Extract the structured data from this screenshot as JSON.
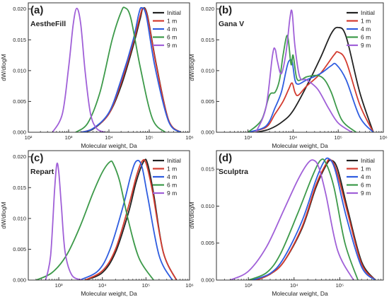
{
  "figure": {
    "background": "#ffffff"
  },
  "chart_data": [
    {
      "type": "line",
      "panel_label": "(a)",
      "sample": "AestheFill",
      "xlabel": "Molecular weight, Da",
      "ylabel": "dW/dlogM",
      "x_scale": "log",
      "xlim": [
        100,
        1000000
      ],
      "ylim": [
        0,
        0.021
      ],
      "xticks": [
        100,
        1000,
        10000,
        100000,
        1000000
      ],
      "xtick_labels": [
        "10²",
        "10³",
        "10⁴",
        "10⁵",
        "10⁶"
      ],
      "yticks": [
        0,
        0.005,
        0.01,
        0.015,
        0.02
      ],
      "ytick_labels": [
        "0.000",
        "0.005",
        "0.010",
        "0.015",
        "0.020"
      ],
      "legend": "top-right",
      "series": [
        {
          "name": "Initial",
          "color": "#222222",
          "x": [
            2000,
            4000,
            10000,
            20000,
            40000,
            60000,
            70000,
            90000,
            150000,
            300000,
            600000
          ],
          "y": [
            0,
            0.0005,
            0.003,
            0.0075,
            0.014,
            0.0185,
            0.0201,
            0.019,
            0.011,
            0.002,
            0
          ]
        },
        {
          "name": "1 m",
          "color": "#d33b2f",
          "x": [
            2000,
            4000,
            10000,
            20000,
            40000,
            60000,
            70000,
            90000,
            150000,
            300000,
            600000
          ],
          "y": [
            0,
            0.0006,
            0.003,
            0.008,
            0.0145,
            0.019,
            0.0201,
            0.0188,
            0.0108,
            0.002,
            0
          ]
        },
        {
          "name": "4 m",
          "color": "#2f5de0",
          "x": [
            2000,
            4000,
            10000,
            20000,
            40000,
            55000,
            65000,
            85000,
            140000,
            300000,
            600000
          ],
          "y": [
            0,
            0.0006,
            0.0032,
            0.0085,
            0.015,
            0.0192,
            0.0202,
            0.0188,
            0.0105,
            0.0018,
            0
          ]
        },
        {
          "name": "6 m",
          "color": "#3d9a4a",
          "x": [
            1500,
            3000,
            6000,
            12000,
            20000,
            25000,
            35000,
            60000,
            120000,
            250000
          ],
          "y": [
            0,
            0.0015,
            0.0065,
            0.015,
            0.0195,
            0.0202,
            0.0185,
            0.0105,
            0.0022,
            0
          ]
        },
        {
          "name": "9 m",
          "color": "#a060d8",
          "x": [
            400,
            700,
            1000,
            1300,
            1600,
            2000,
            2600,
            3500,
            5000,
            8000
          ],
          "y": [
            0,
            0.003,
            0.0105,
            0.0175,
            0.0201,
            0.0175,
            0.0095,
            0.003,
            0.0006,
            0
          ]
        }
      ]
    },
    {
      "type": "line",
      "panel_label": "(b)",
      "sample": "Gana V",
      "xlabel": "Molecular weight, Da",
      "ylabel": "dW/dlogM",
      "x_scale": "log",
      "xlim": [
        200,
        1000000
      ],
      "ylim": [
        0,
        0.021
      ],
      "xticks": [
        1000,
        10000,
        100000,
        1000000
      ],
      "xtick_labels": [
        "10³",
        "10⁴",
        "10⁵",
        "10⁶"
      ],
      "yticks": [
        0,
        0.005,
        0.01,
        0.015,
        0.02
      ],
      "ytick_labels": [
        "0.000",
        "0.005",
        "0.010",
        "0.015",
        "0.020"
      ],
      "legend": "top-right",
      "series": [
        {
          "name": "Initial",
          "color": "#222222",
          "x": [
            1500,
            3000,
            6000,
            10000,
            20000,
            40000,
            70000,
            100000,
            150000,
            300000,
            600000
          ],
          "y": [
            0,
            0.0005,
            0.0018,
            0.0035,
            0.0075,
            0.012,
            0.016,
            0.017,
            0.0155,
            0.0065,
            0
          ]
        },
        {
          "name": "1 m",
          "color": "#d33b2f",
          "x": [
            1000,
            2500,
            4000,
            6000,
            8000,
            9500,
            11000,
            13000,
            20000,
            40000,
            80000,
            100000,
            150000,
            300000,
            600000
          ],
          "y": [
            0,
            0.0008,
            0.003,
            0.005,
            0.007,
            0.008,
            0.0065,
            0.006,
            0.0075,
            0.0095,
            0.0125,
            0.013,
            0.0115,
            0.0045,
            0
          ]
        },
        {
          "name": "4 m",
          "color": "#2f5de0",
          "x": [
            1000,
            2500,
            4000,
            5500,
            7000,
            8000,
            9500,
            11000,
            13000,
            20000,
            40000,
            70000,
            90000,
            150000,
            300000,
            600000
          ],
          "y": [
            0,
            0.001,
            0.004,
            0.0065,
            0.01,
            0.0115,
            0.0115,
            0.0085,
            0.0078,
            0.0085,
            0.0095,
            0.0108,
            0.011,
            0.0085,
            0.0025,
            0
          ]
        },
        {
          "name": "6 m",
          "color": "#3d9a4a",
          "x": [
            1000,
            2000,
            3000,
            4000,
            5000,
            6000,
            7500,
            9000,
            10000,
            12000,
            15000,
            20000,
            35000,
            50000,
            70000,
            120000,
            250000
          ],
          "y": [
            0,
            0.002,
            0.006,
            0.0065,
            0.0085,
            0.0125,
            0.0157,
            0.011,
            0.0125,
            0.0088,
            0.0085,
            0.009,
            0.0092,
            0.0085,
            0.0065,
            0.002,
            0
          ]
        },
        {
          "name": "9 m",
          "color": "#a060d8",
          "x": [
            1500,
            2500,
            3500,
            4000,
            4500,
            5500,
            7000,
            8500,
            9500,
            11000,
            14000,
            20000,
            35000,
            60000,
            100000,
            200000
          ],
          "y": [
            0,
            0.004,
            0.0125,
            0.0135,
            0.0115,
            0.0095,
            0.013,
            0.0185,
            0.0195,
            0.014,
            0.009,
            0.0085,
            0.007,
            0.004,
            0.0015,
            0
          ]
        }
      ]
    },
    {
      "type": "line",
      "panel_label": "(c)",
      "sample": "Repart",
      "xlabel": "Molecular weight, Da",
      "ylabel": "dW/dlogM",
      "x_scale": "log",
      "xlim": [
        200,
        1000000
      ],
      "ylim": [
        0,
        0.021
      ],
      "xticks": [
        1000,
        10000,
        100000,
        1000000
      ],
      "xtick_labels": [
        "10³",
        "10⁴",
        "10⁵",
        "10⁶"
      ],
      "yticks": [
        0,
        0.005,
        0.01,
        0.015,
        0.02
      ],
      "ytick_labels": [
        "0.000",
        "0.005",
        "0.010",
        "0.015",
        "0.020"
      ],
      "legend": "top-right",
      "series": [
        {
          "name": "Initial",
          "color": "#222222",
          "x": [
            4000,
            10000,
            20000,
            40000,
            60000,
            90000,
            110000,
            150000,
            250000,
            500000
          ],
          "y": [
            0,
            0.0012,
            0.0045,
            0.011,
            0.016,
            0.0193,
            0.0188,
            0.014,
            0.0045,
            0
          ]
        },
        {
          "name": "1 m",
          "color": "#d33b2f",
          "x": [
            4000,
            10000,
            20000,
            40000,
            60000,
            80000,
            100000,
            140000,
            250000,
            500000
          ],
          "y": [
            0,
            0.0015,
            0.005,
            0.012,
            0.0168,
            0.0192,
            0.019,
            0.0145,
            0.0045,
            0
          ]
        },
        {
          "name": "4 m",
          "color": "#2f5de0",
          "x": [
            3000,
            8000,
            15000,
            30000,
            45000,
            60000,
            80000,
            110000,
            200000,
            400000
          ],
          "y": [
            0,
            0.0015,
            0.005,
            0.012,
            0.017,
            0.0193,
            0.0185,
            0.0135,
            0.004,
            0
          ]
        },
        {
          "name": "6 m",
          "color": "#3d9a4a",
          "x": [
            300,
            700,
            1500,
            3000,
            6000,
            10000,
            15000,
            18000,
            25000,
            40000,
            70000,
            150000
          ],
          "y": [
            0,
            0.0012,
            0.004,
            0.0085,
            0.014,
            0.0175,
            0.0192,
            0.0188,
            0.016,
            0.0095,
            0.0035,
            0
          ]
        },
        {
          "name": "9 m",
          "color": "#a060d8",
          "x": [
            500,
            650,
            800,
            900,
            1000,
            1150,
            1400,
            2000,
            3500
          ],
          "y": [
            0,
            0.004,
            0.0145,
            0.0188,
            0.0175,
            0.012,
            0.0045,
            0.0008,
            0
          ]
        }
      ]
    },
    {
      "type": "line",
      "panel_label": "(d)",
      "sample": "Sculptra",
      "xlabel": "Molecular weight, Da",
      "ylabel": "dW/dlogM",
      "x_scale": "log",
      "xlim": [
        200,
        900000
      ],
      "ylim": [
        0,
        0.0175
      ],
      "xticks": [
        1000,
        10000,
        100000
      ],
      "xtick_labels": [
        "10³",
        "10⁴",
        "10⁵"
      ],
      "yticks": [
        0,
        0.005,
        0.01,
        0.015
      ],
      "ytick_labels": [
        "0.000",
        "0.005",
        "0.010",
        "0.015"
      ],
      "legend": "top-right",
      "series": [
        {
          "name": "Initial",
          "color": "#222222",
          "x": [
            1500,
            3000,
            6000,
            15000,
            30000,
            50000,
            65000,
            90000,
            150000,
            300000,
            600000
          ],
          "y": [
            0,
            0.0008,
            0.0025,
            0.007,
            0.0125,
            0.0155,
            0.0162,
            0.015,
            0.0095,
            0.0025,
            0
          ]
        },
        {
          "name": "1 m",
          "color": "#d33b2f",
          "x": [
            1500,
            3000,
            6000,
            15000,
            30000,
            50000,
            62000,
            85000,
            150000,
            300000,
            600000
          ],
          "y": [
            0,
            0.0008,
            0.0025,
            0.0072,
            0.0128,
            0.0157,
            0.0163,
            0.0148,
            0.009,
            0.0022,
            0
          ]
        },
        {
          "name": "4 m",
          "color": "#2f5de0",
          "x": [
            1200,
            3000,
            6000,
            15000,
            30000,
            45000,
            58000,
            80000,
            140000,
            300000,
            600000
          ],
          "y": [
            0,
            0.0009,
            0.003,
            0.008,
            0.0135,
            0.016,
            0.0164,
            0.0148,
            0.0085,
            0.0018,
            0
          ]
        },
        {
          "name": "6 m",
          "color": "#3d9a4a",
          "x": [
            1000,
            2500,
            5000,
            12000,
            25000,
            38000,
            50000,
            75000,
            130000,
            250000
          ],
          "y": [
            0,
            0.001,
            0.0035,
            0.009,
            0.014,
            0.0162,
            0.0158,
            0.0125,
            0.005,
            0
          ]
        },
        {
          "name": "9 m",
          "color": "#a060d8",
          "x": [
            400,
            1000,
            2500,
            6000,
            12000,
            20000,
            27000,
            35000,
            50000,
            90000,
            200000
          ],
          "y": [
            0,
            0.0012,
            0.0045,
            0.0095,
            0.0135,
            0.0158,
            0.0162,
            0.0152,
            0.0115,
            0.004,
            0
          ]
        }
      ]
    }
  ]
}
